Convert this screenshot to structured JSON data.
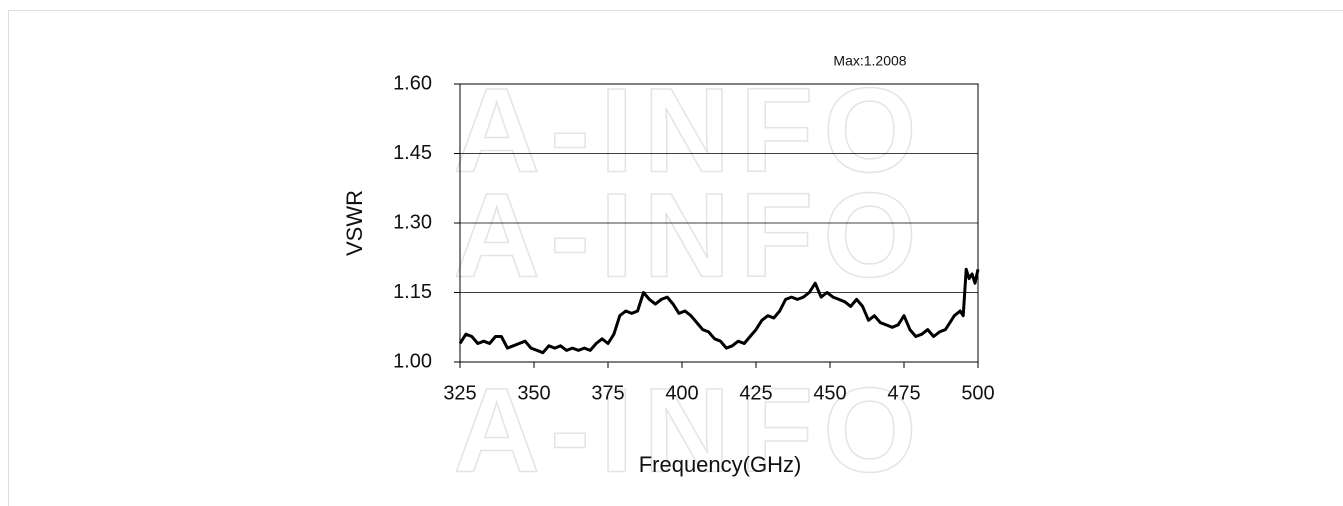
{
  "chart_data": {
    "type": "line",
    "watermark": "A-INFO",
    "annotation": "Max:1.2008",
    "xlabel": "Frequency(GHz)",
    "ylabel": "VSWR",
    "xlim": [
      325,
      500
    ],
    "ylim": [
      1.0,
      1.6
    ],
    "xticks": [
      325,
      350,
      375,
      400,
      425,
      450,
      475,
      500
    ],
    "yticks": [
      {
        "value": 1.0,
        "label": "1.00"
      },
      {
        "value": 1.15,
        "label": "1.15"
      },
      {
        "value": 1.3,
        "label": "1.30"
      },
      {
        "value": 1.45,
        "label": "1.45"
      },
      {
        "value": 1.6,
        "label": "1.60"
      }
    ],
    "grid": true,
    "x": [
      325,
      327,
      329,
      331,
      333,
      335,
      337,
      339,
      341,
      343,
      345,
      347,
      349,
      351,
      353,
      355,
      357,
      359,
      361,
      363,
      365,
      367,
      369,
      371,
      373,
      375,
      377,
      379,
      381,
      383,
      385,
      387,
      389,
      391,
      393,
      395,
      397,
      399,
      401,
      403,
      405,
      407,
      409,
      411,
      413,
      415,
      417,
      419,
      421,
      423,
      425,
      427,
      429,
      431,
      433,
      435,
      437,
      439,
      441,
      443,
      445,
      447,
      449,
      451,
      453,
      455,
      457,
      459,
      461,
      463,
      465,
      467,
      469,
      471,
      473,
      475,
      477,
      479,
      481,
      483,
      485,
      487,
      489,
      491,
      492,
      494,
      495,
      496,
      497,
      498,
      499,
      500
    ],
    "series": [
      {
        "name": "VSWR",
        "color": "#000000",
        "values": [
          1.04,
          1.06,
          1.055,
          1.04,
          1.045,
          1.04,
          1.055,
          1.055,
          1.03,
          1.035,
          1.04,
          1.045,
          1.03,
          1.025,
          1.02,
          1.035,
          1.03,
          1.035,
          1.025,
          1.03,
          1.025,
          1.03,
          1.025,
          1.04,
          1.05,
          1.04,
          1.06,
          1.1,
          1.11,
          1.105,
          1.11,
          1.15,
          1.135,
          1.125,
          1.135,
          1.14,
          1.125,
          1.105,
          1.11,
          1.1,
          1.085,
          1.07,
          1.065,
          1.05,
          1.045,
          1.03,
          1.035,
          1.045,
          1.04,
          1.055,
          1.07,
          1.09,
          1.1,
          1.095,
          1.11,
          1.135,
          1.14,
          1.135,
          1.14,
          1.15,
          1.17,
          1.14,
          1.15,
          1.14,
          1.135,
          1.13,
          1.12,
          1.135,
          1.12,
          1.09,
          1.1,
          1.085,
          1.08,
          1.075,
          1.08,
          1.1,
          1.07,
          1.055,
          1.06,
          1.07,
          1.055,
          1.065,
          1.07,
          1.09,
          1.1,
          1.11,
          1.1,
          1.2,
          1.18,
          1.19,
          1.17,
          1.2
        ]
      }
    ]
  }
}
